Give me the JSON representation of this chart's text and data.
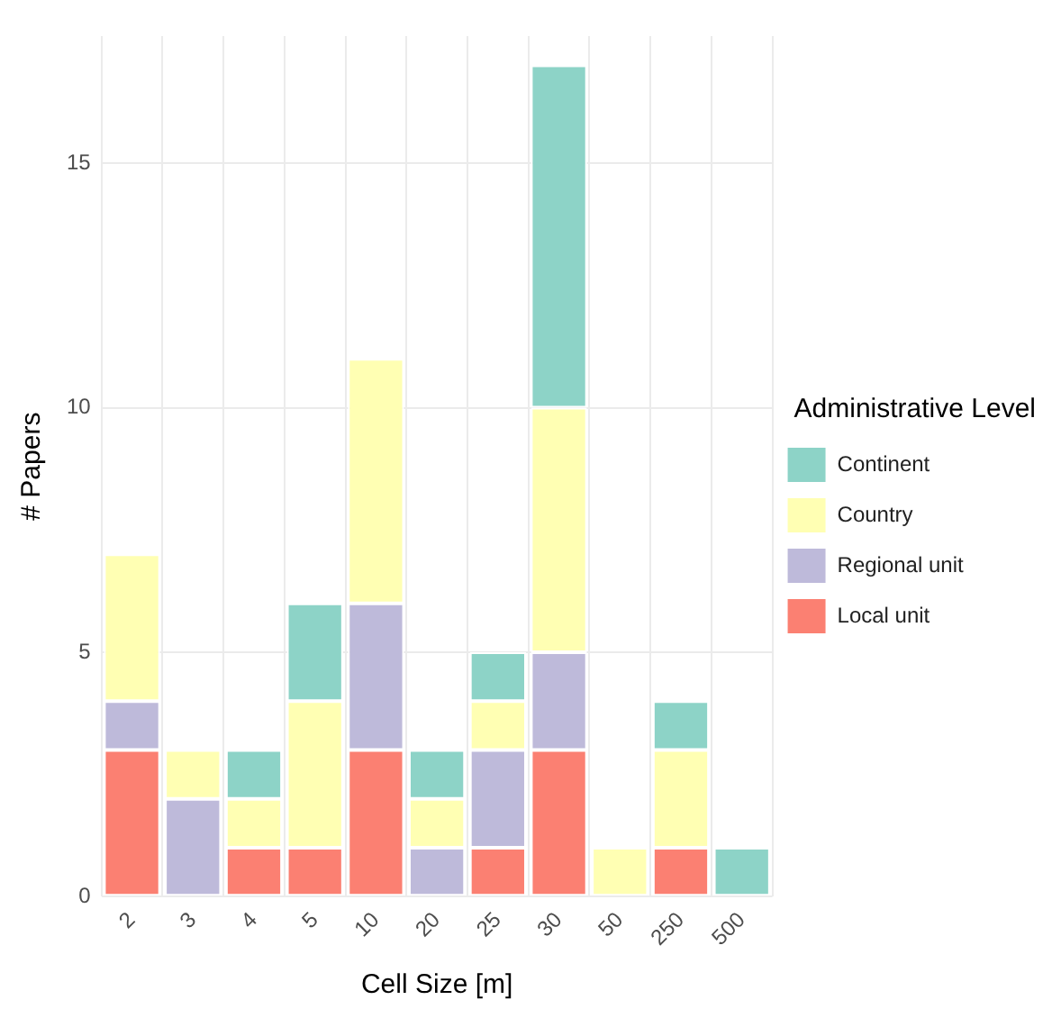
{
  "chart_data": {
    "type": "bar",
    "stacked": true,
    "xlabel": "Cell Size [m]",
    "ylabel": "# Papers",
    "legend_title": "Administrative Level",
    "legend": "right",
    "grid": true,
    "categories": [
      "2",
      "3",
      "4",
      "5",
      "10",
      "20",
      "25",
      "30",
      "50",
      "250",
      "500"
    ],
    "ylim": [
      0,
      17.6
    ],
    "yticks": [
      0,
      5,
      10,
      15
    ],
    "series": [
      {
        "name": "Local unit",
        "color": "#fb8072",
        "values": [
          3,
          0,
          1,
          1,
          3,
          0,
          1,
          3,
          0,
          1,
          0
        ]
      },
      {
        "name": "Regional unit",
        "color": "#bebada",
        "values": [
          1,
          2,
          0,
          0,
          3,
          1,
          2,
          2,
          0,
          0,
          0
        ]
      },
      {
        "name": "Country",
        "color": "#ffffb3",
        "values": [
          3,
          1,
          1,
          3,
          5,
          1,
          1,
          5,
          1,
          2,
          0
        ]
      },
      {
        "name": "Continent",
        "color": "#8dd3c7",
        "values": [
          0,
          0,
          1,
          2,
          0,
          1,
          1,
          7,
          0,
          1,
          1
        ]
      }
    ]
  }
}
